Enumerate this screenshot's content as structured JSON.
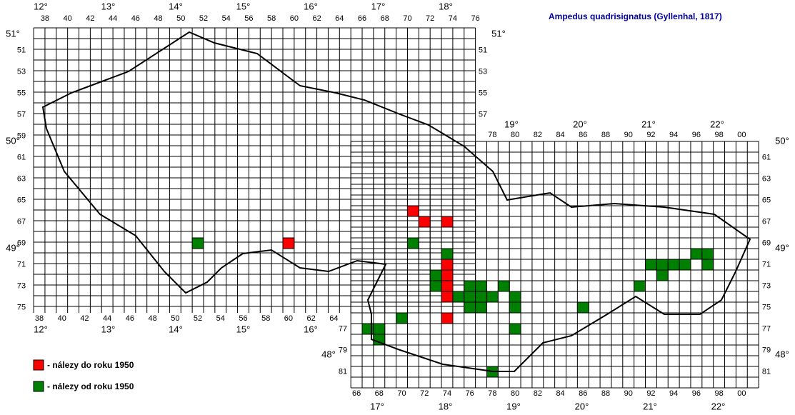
{
  "title": "Ampedus quadrisignatus (Gyllenhal, 1817)",
  "legend": [
    {
      "label": "- nálezy do roku 1950",
      "color": "#ff0000"
    },
    {
      "label": "- nálezy od roku 1950",
      "color": "#008000"
    }
  ],
  "top_columns_west": [
    "38",
    "40",
    "42",
    "44",
    "46",
    "48",
    "50",
    "52",
    "54",
    "56",
    "58",
    "60",
    "62",
    "64",
    "66",
    "68",
    "70",
    "72",
    "74",
    "76"
  ],
  "top_columns_east": [
    "78",
    "80",
    "82",
    "84",
    "86",
    "88",
    "90",
    "92",
    "94",
    "96",
    "98",
    "00"
  ],
  "bottom_columns_west": [
    "38",
    "40",
    "42",
    "44",
    "46",
    "48",
    "50",
    "52",
    "54",
    "56",
    "58",
    "60",
    "62",
    "64"
  ],
  "bottom_columns_east": [
    "66",
    "68",
    "70",
    "72",
    "74",
    "76",
    "78",
    "80",
    "82",
    "84",
    "86",
    "88",
    "90",
    "92",
    "94",
    "96",
    "98",
    "00"
  ],
  "rows_west_left": [
    "51",
    "53",
    "55",
    "57",
    "59",
    "61",
    "63",
    "65",
    "67",
    "69",
    "71",
    "73",
    "75"
  ],
  "rows_west_right": [
    "51",
    "53",
    "55",
    "57"
  ],
  "rows_east_left": [
    "77",
    "79",
    "81"
  ],
  "rows_east_right": [
    "61",
    "63",
    "65",
    "67",
    "69",
    "71",
    "73",
    "75",
    "77",
    "79",
    "81"
  ],
  "degrees_top": [
    "12°",
    "13°",
    "14°",
    "15°",
    "16°",
    "17°",
    "18°"
  ],
  "degrees_top_east": [
    "19°",
    "20°",
    "21°",
    "22°"
  ],
  "degrees_bottom_west": [
    "12°",
    "13°",
    "14°",
    "15°",
    "16°"
  ],
  "degrees_bottom_east": [
    "17°",
    "18°",
    "19°",
    "20°",
    "21°",
    "22°"
  ],
  "latitudes_left": [
    "51°",
    "50°"
  ],
  "latitudes_mid": [
    "48°"
  ],
  "latitudes_right": [
    "51°",
    "50°",
    "49°",
    "48°"
  ],
  "latitude_west_49": "49°",
  "records_before_1950": [
    {
      "col": 71,
      "row": 66
    },
    {
      "col": 72,
      "row": 67
    },
    {
      "col": 74,
      "row": 67
    },
    {
      "col": 60,
      "row": 69
    },
    {
      "col": 74,
      "row": 71
    },
    {
      "col": 74,
      "row": 72
    },
    {
      "col": 74,
      "row": 73
    },
    {
      "col": 74,
      "row": 74
    },
    {
      "col": 74,
      "row": 76
    }
  ],
  "records_since_1950": [
    {
      "col": 52,
      "row": 69
    },
    {
      "col": 71,
      "row": 69
    },
    {
      "col": 74,
      "row": 70
    },
    {
      "col": 73,
      "row": 72
    },
    {
      "col": 73,
      "row": 73
    },
    {
      "col": 76,
      "row": 73
    },
    {
      "col": 77,
      "row": 73
    },
    {
      "col": 79,
      "row": 73
    },
    {
      "col": 75,
      "row": 74
    },
    {
      "col": 76,
      "row": 74
    },
    {
      "col": 77,
      "row": 74
    },
    {
      "col": 78,
      "row": 74
    },
    {
      "col": 80,
      "row": 74
    },
    {
      "col": 76,
      "row": 75
    },
    {
      "col": 77,
      "row": 75
    },
    {
      "col": 80,
      "row": 75
    },
    {
      "col": 86,
      "row": 75
    },
    {
      "col": 70,
      "row": 76
    },
    {
      "col": 67,
      "row": 77
    },
    {
      "col": 68,
      "row": 77
    },
    {
      "col": 80,
      "row": 77
    },
    {
      "col": 68,
      "row": 78
    },
    {
      "col": 91,
      "row": 73
    },
    {
      "col": 92,
      "row": 71
    },
    {
      "col": 93,
      "row": 71
    },
    {
      "col": 94,
      "row": 71
    },
    {
      "col": 95,
      "row": 71
    },
    {
      "col": 96,
      "row": 70
    },
    {
      "col": 97,
      "row": 70
    },
    {
      "col": 97,
      "row": 71
    },
    {
      "col": 93,
      "row": 72
    },
    {
      "col": 78,
      "row": 81
    }
  ]
}
